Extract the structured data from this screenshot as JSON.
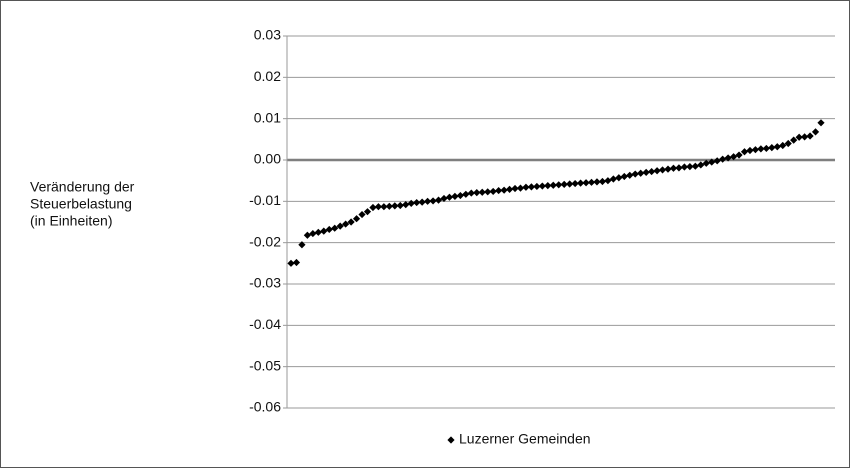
{
  "chart_data": {
    "type": "scatter",
    "ylabel": [
      "Veränderung der",
      "Steuerbelastung",
      "(in Einheiten)"
    ],
    "series": [
      {
        "name": "Luzerner Gemeinden",
        "color": "#000000",
        "values": [
          -0.025,
          -0.0248,
          -0.0205,
          -0.0182,
          -0.0178,
          -0.0175,
          -0.0172,
          -0.0168,
          -0.0165,
          -0.016,
          -0.0155,
          -0.015,
          -0.0142,
          -0.0132,
          -0.0125,
          -0.0115,
          -0.0113,
          -0.0113,
          -0.0112,
          -0.0111,
          -0.011,
          -0.0108,
          -0.0105,
          -0.0103,
          -0.0102,
          -0.01,
          -0.0099,
          -0.0097,
          -0.0093,
          -0.009,
          -0.0088,
          -0.0086,
          -0.0083,
          -0.008,
          -0.0079,
          -0.0078,
          -0.0077,
          -0.0076,
          -0.0074,
          -0.0073,
          -0.0071,
          -0.0069,
          -0.0068,
          -0.0066,
          -0.0065,
          -0.0064,
          -0.0063,
          -0.0062,
          -0.0061,
          -0.006,
          -0.0059,
          -0.0058,
          -0.0057,
          -0.0056,
          -0.0055,
          -0.0054,
          -0.0053,
          -0.0052,
          -0.005,
          -0.0046,
          -0.0043,
          -0.004,
          -0.0037,
          -0.0034,
          -0.0032,
          -0.003,
          -0.0028,
          -0.0026,
          -0.0024,
          -0.0022,
          -0.002,
          -0.0019,
          -0.0017,
          -0.0016,
          -0.0015,
          -0.0012,
          -0.0008,
          -0.0005,
          -0.0002,
          0.0002,
          0.0005,
          0.0008,
          0.0012,
          0.002,
          0.0023,
          0.0025,
          0.0027,
          0.0028,
          0.003,
          0.0032,
          0.0035,
          0.004,
          0.0048,
          0.0055,
          0.0056,
          0.0058,
          0.0068,
          0.009
        ]
      }
    ],
    "ylim": [
      -0.06,
      0.03
    ],
    "yticks": [
      {
        "value": -0.06,
        "label": "-0.06"
      },
      {
        "value": -0.05,
        "label": "-0.05"
      },
      {
        "value": -0.04,
        "label": "-0.04"
      },
      {
        "value": -0.03,
        "label": "-0.03"
      },
      {
        "value": -0.02,
        "label": "-0.02"
      },
      {
        "value": -0.01,
        "label": "-0.01"
      },
      {
        "value": 0,
        "label": "0.00"
      },
      {
        "value": 0.01,
        "label": "0.01"
      },
      {
        "value": 0.02,
        "label": "0.02"
      },
      {
        "value": 0.03,
        "label": "0.03"
      }
    ],
    "grid": true,
    "legend": "bottom"
  }
}
